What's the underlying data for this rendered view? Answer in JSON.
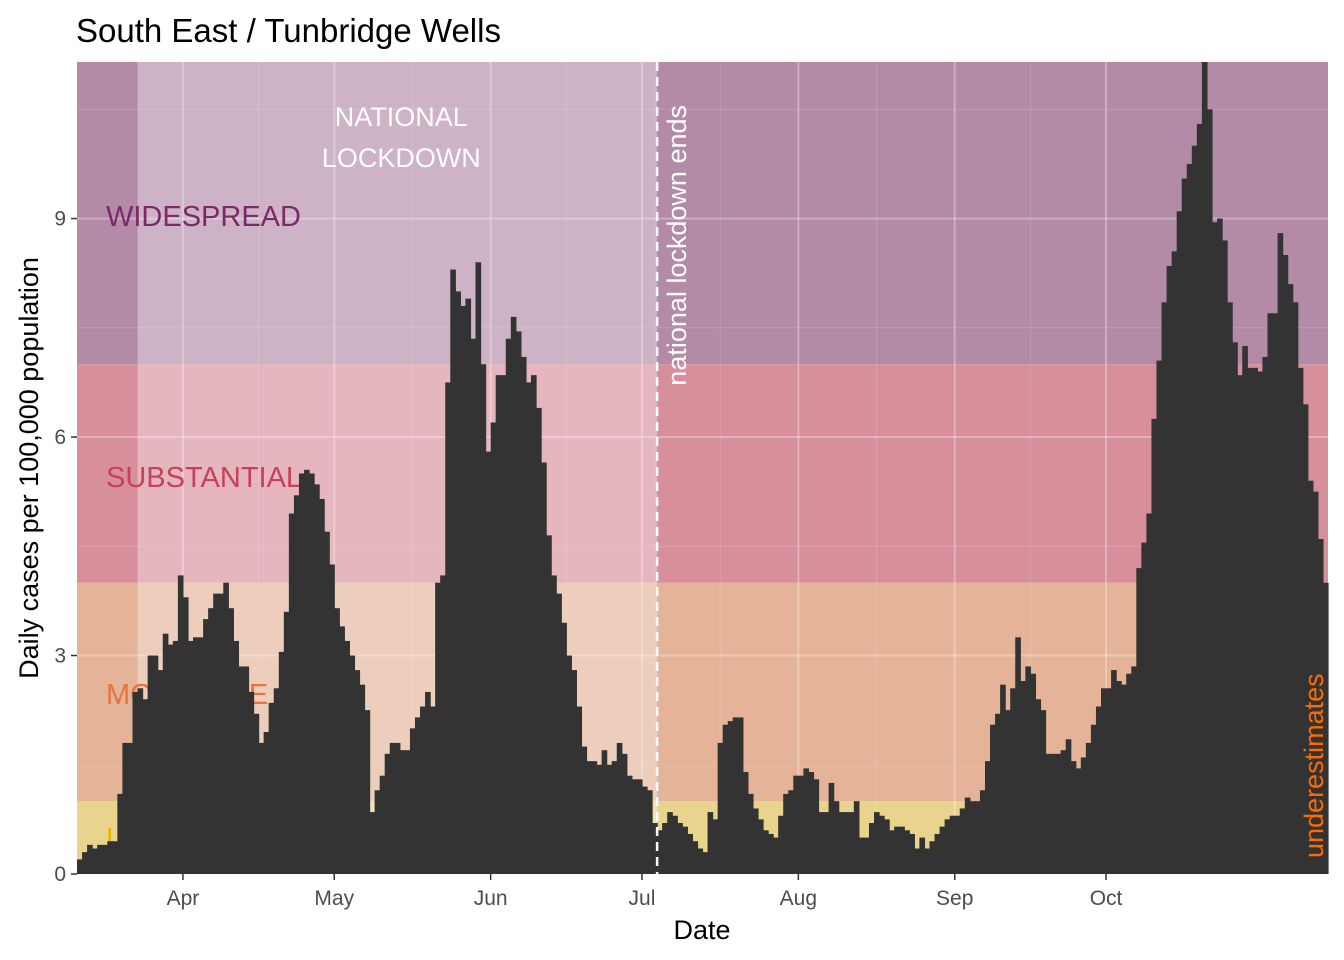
{
  "chart_data": {
    "type": "bar",
    "title": "South East / Tunbridge Wells",
    "xlabel": "Date",
    "ylabel": "Daily cases per 100,000 population",
    "x_start": "2020-03-11",
    "ylim": [
      0,
      11.15
    ],
    "yticks": [
      0,
      3,
      6,
      9
    ],
    "xticks": [
      {
        "label": "Apr",
        "date": "2020-04-01"
      },
      {
        "label": "May",
        "date": "2020-05-01"
      },
      {
        "label": "Jun",
        "date": "2020-06-01"
      },
      {
        "label": "Jul",
        "date": "2020-07-01"
      },
      {
        "label": "Aug",
        "date": "2020-08-01"
      },
      {
        "label": "Sep",
        "date": "2020-09-01"
      },
      {
        "label": "Oct",
        "date": "2020-10-01"
      }
    ],
    "bands": [
      {
        "label": "LOW",
        "from": 0,
        "to": 1,
        "color": "#e8d48c",
        "label_color": "#e6b800"
      },
      {
        "label": "MODERATE",
        "from": 1,
        "to": 4,
        "color": "#e4b398",
        "label_color": "#e8743c"
      },
      {
        "label": "SUBSTANTIAL",
        "from": 4,
        "to": 7,
        "color": "#d88f9c",
        "label_color": "#c8405a"
      },
      {
        "label": "WIDESPREAD",
        "from": 7,
        "to": 11.15,
        "color": "#b38ba6",
        "label_color": "#7a2a68"
      }
    ],
    "lockdown": {
      "label_line1": "NATIONAL",
      "label_line2": "LOCKDOWN",
      "start": "2020-03-23",
      "end": "2020-07-04"
    },
    "annotation": {
      "text": "national lockdown ends",
      "date": "2020-07-04"
    },
    "caveat": {
      "text": "underestimates",
      "color": "#ff6a00"
    },
    "values": [
      0.2,
      0.3,
      0.4,
      0.35,
      0.4,
      0.4,
      0.45,
      0.45,
      1.1,
      1.8,
      1.8,
      2.5,
      2.55,
      2.4,
      3.0,
      3.0,
      2.8,
      3.3,
      3.15,
      3.2,
      4.1,
      3.8,
      3.2,
      3.25,
      3.25,
      3.5,
      3.65,
      3.85,
      3.85,
      4.0,
      3.65,
      3.2,
      2.85,
      2.85,
      2.5,
      2.2,
      1.8,
      1.95,
      2.35,
      2.55,
      3.05,
      3.6,
      4.95,
      5.2,
      5.5,
      5.55,
      5.5,
      5.35,
      5.15,
      4.7,
      4.25,
      3.65,
      3.4,
      3.2,
      3.0,
      2.8,
      2.6,
      2.25,
      0.85,
      1.15,
      1.35,
      1.65,
      1.8,
      1.8,
      1.7,
      1.7,
      2.0,
      2.15,
      2.3,
      2.5,
      2.3,
      4.0,
      4.1,
      6.75,
      8.3,
      8.0,
      7.8,
      7.9,
      7.35,
      8.4,
      7.0,
      5.8,
      6.2,
      6.85,
      6.85,
      7.35,
      7.65,
      7.45,
      7.1,
      6.75,
      6.85,
      6.4,
      5.65,
      4.65,
      4.1,
      3.85,
      3.45,
      3.0,
      2.8,
      2.3,
      1.75,
      1.55,
      1.55,
      1.5,
      1.7,
      1.5,
      1.55,
      1.8,
      1.65,
      1.35,
      1.3,
      1.3,
      1.2,
      1.15,
      0.7,
      0.6,
      0.7,
      0.85,
      0.8,
      0.7,
      0.65,
      0.55,
      0.45,
      0.35,
      0.3,
      0.85,
      0.75,
      1.8,
      2.05,
      2.1,
      2.15,
      2.15,
      1.4,
      1.1,
      0.9,
      0.75,
      0.6,
      0.55,
      0.5,
      0.8,
      1.1,
      1.15,
      1.35,
      1.35,
      1.45,
      1.4,
      1.3,
      0.85,
      0.85,
      1.25,
      1.0,
      0.85,
      0.85,
      0.85,
      1.0,
      0.5,
      0.5,
      0.7,
      0.85,
      0.8,
      0.75,
      0.6,
      0.65,
      0.65,
      0.6,
      0.55,
      0.35,
      0.5,
      0.35,
      0.45,
      0.55,
      0.65,
      0.75,
      0.8,
      0.8,
      0.9,
      1.05,
      1.0,
      1.0,
      1.15,
      1.55,
      2.05,
      2.2,
      2.6,
      2.25,
      2.55,
      3.25,
      2.65,
      2.85,
      2.75,
      2.4,
      2.25,
      1.65,
      1.65,
      1.65,
      1.7,
      1.85,
      1.55,
      1.45,
      1.6,
      1.8,
      2.05,
      2.3,
      2.55,
      2.55,
      2.8,
      2.65,
      2.6,
      2.75,
      2.85,
      4.2,
      4.55,
      4.95,
      6.25,
      7.05,
      7.85,
      8.35,
      8.55,
      9.1,
      9.55,
      9.75,
      10.0,
      10.3,
      11.15,
      10.5,
      8.95,
      9.0,
      8.7,
      7.85,
      7.3,
      6.85,
      7.25,
      6.95,
      6.95,
      6.9,
      7.1,
      7.7,
      7.7,
      8.8,
      8.5,
      8.1,
      7.85,
      6.95,
      6.45,
      5.4,
      5.25,
      4.6,
      4.0
    ]
  }
}
